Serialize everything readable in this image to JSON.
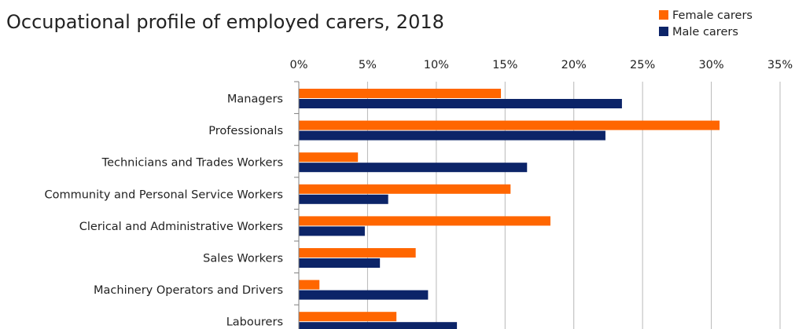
{
  "chart_data": {
    "type": "bar",
    "orientation": "horizontal",
    "title": "Occupational profile of employed carers, 2018",
    "categories": [
      "Managers",
      "Professionals",
      "Technicians and Trades Workers",
      "Community and Personal Service Workers",
      "Clerical and Administrative Workers",
      "Sales Workers",
      "Machinery Operators and Drivers",
      "Labourers"
    ],
    "series": [
      {
        "name": "Female carers",
        "color": "#FF6600",
        "values": [
          14.7,
          30.6,
          4.3,
          15.4,
          18.3,
          8.5,
          1.5,
          7.1
        ]
      },
      {
        "name": "Male carers",
        "color": "#0C2468",
        "values": [
          23.5,
          22.3,
          16.6,
          6.5,
          4.8,
          5.9,
          9.4,
          11.5
        ]
      }
    ],
    "xlim": [
      0,
      35
    ],
    "xticks": [
      "0%",
      "5%",
      "10%",
      "15%",
      "20%",
      "25%",
      "30%",
      "35%"
    ],
    "xaxis_position": "top",
    "grid": "vertical",
    "legend": "top-right"
  }
}
